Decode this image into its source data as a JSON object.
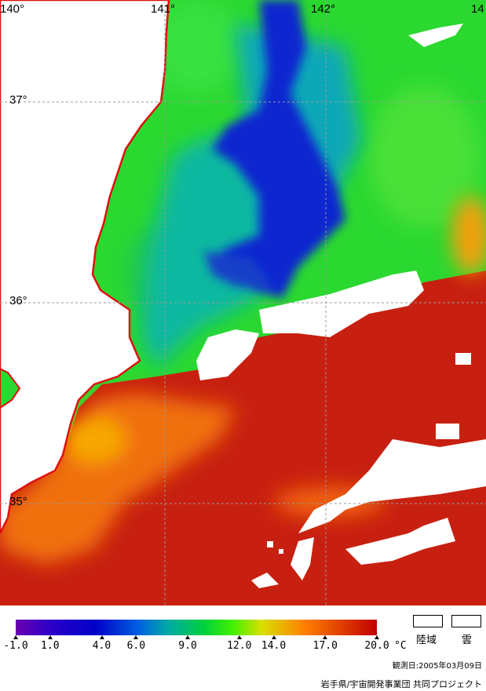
{
  "map": {
    "grid_labels": {
      "lon": [
        "140°",
        "141°",
        "142°",
        "14"
      ],
      "lat": [
        "37°",
        "36°",
        "35°"
      ]
    }
  },
  "legend": {
    "ticks": [
      "-1.0",
      "1.0",
      "4.0",
      "6.0",
      "9.0",
      "12.0",
      "14.0",
      "17.0",
      "20.0"
    ],
    "unit": "°C",
    "land_label": "陸域",
    "cloud_label": "雲",
    "colors": [
      "#6a00b0",
      "#2a00c8",
      "#0000c8",
      "#0060e0",
      "#00a8a8",
      "#00d040",
      "#40f000",
      "#d8e000",
      "#ff8000",
      "#e04000",
      "#c00000"
    ]
  },
  "footer": {
    "observation_date": "観測日:2005年03月09日",
    "credit": "岩手県/宇宙開発事業団 共同プロジェクト"
  }
}
